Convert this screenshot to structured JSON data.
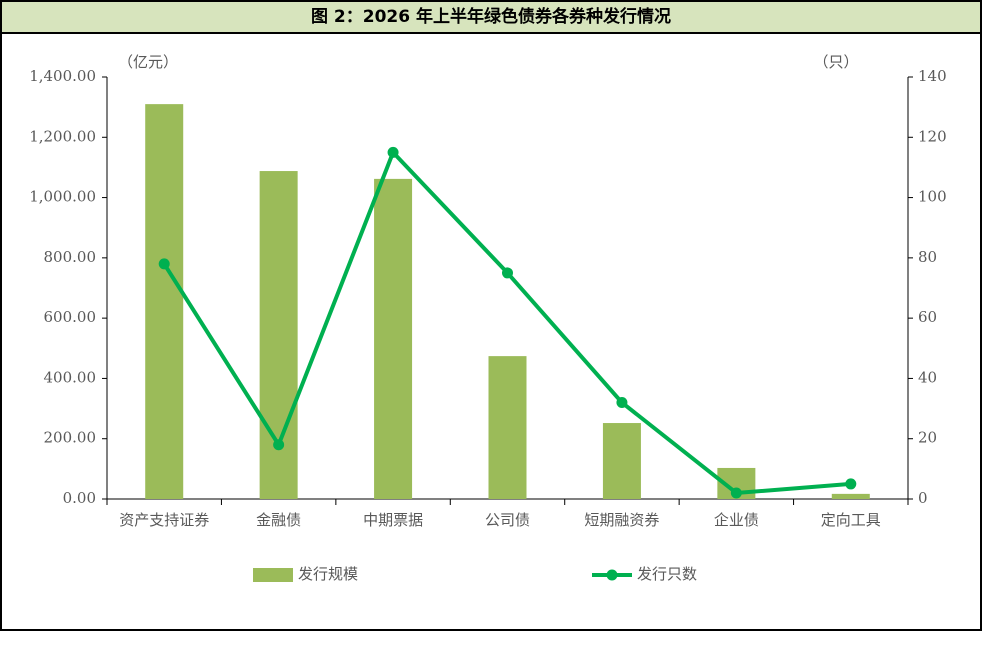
{
  "chart_data": {
    "type": "bar-line",
    "title": "图 2：2026 年上半年绿色债券各券种发行情况",
    "y_unit": "（亿元）",
    "y2_unit": "（只）",
    "categories": [
      "资产支持证券",
      "金融债",
      "中期票据",
      "公司债",
      "短期融资券",
      "企业债",
      "定向工具"
    ],
    "series": [
      {
        "name": "发行规模",
        "type": "bar",
        "color": "#9bbb59",
        "values": [
          1310,
          1088,
          1062,
          474,
          252,
          103,
          17
        ]
      },
      {
        "name": "发行只数",
        "type": "line",
        "axis": "y2",
        "color": "#00b050",
        "values": [
          78,
          18,
          115,
          75,
          32,
          2,
          5
        ]
      }
    ],
    "ylim": [
      0,
      1400
    ],
    "yticks": [
      {
        "value": 0,
        "label": "0.00"
      },
      {
        "value": 200,
        "label": "200.00"
      },
      {
        "value": 400,
        "label": "400.00"
      },
      {
        "value": 600,
        "label": "600.00"
      },
      {
        "value": 800,
        "label": "800.00"
      },
      {
        "value": 1000,
        "label": "1,000.00"
      },
      {
        "value": 1200,
        "label": "1,200.00"
      },
      {
        "value": 1400,
        "label": "1,400.00"
      }
    ],
    "y2lim": [
      0,
      140
    ],
    "y2ticks": [
      0,
      20,
      40,
      60,
      80,
      100,
      120,
      140
    ],
    "grid": false
  }
}
